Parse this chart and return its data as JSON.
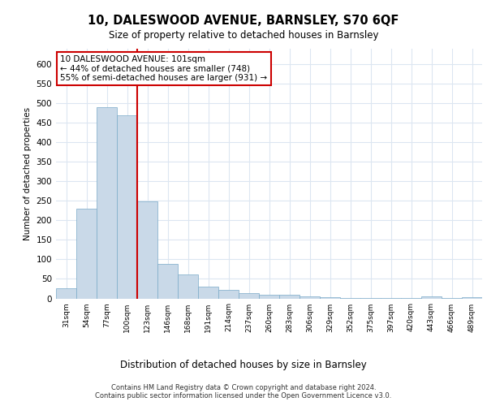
{
  "title1": "10, DALESWOOD AVENUE, BARNSLEY, S70 6QF",
  "title2": "Size of property relative to detached houses in Barnsley",
  "xlabel": "Distribution of detached houses by size in Barnsley",
  "ylabel": "Number of detached properties",
  "footer1": "Contains HM Land Registry data © Crown copyright and database right 2024.",
  "footer2": "Contains public sector information licensed under the Open Government Licence v3.0.",
  "annotation_title": "10 DALESWOOD AVENUE: 101sqm",
  "annotation_line2": "← 44% of detached houses are smaller (748)",
  "annotation_line3": "55% of semi-detached houses are larger (931) →",
  "bar_color": "#c9d9e8",
  "bar_edge_color": "#7aaac8",
  "vline_color": "#cc0000",
  "annotation_box_color": "#cc0000",
  "grid_color": "#dce6f1",
  "categories": [
    "31sqm",
    "54sqm",
    "77sqm",
    "100sqm",
    "123sqm",
    "146sqm",
    "168sqm",
    "191sqm",
    "214sqm",
    "237sqm",
    "260sqm",
    "283sqm",
    "306sqm",
    "329sqm",
    "352sqm",
    "375sqm",
    "397sqm",
    "420sqm",
    "443sqm",
    "466sqm",
    "489sqm"
  ],
  "values": [
    25,
    230,
    490,
    470,
    248,
    88,
    62,
    30,
    22,
    13,
    10,
    9,
    5,
    3,
    2,
    2,
    1,
    1,
    6,
    1,
    4
  ],
  "ylim": [
    0,
    640
  ],
  "yticks": [
    0,
    50,
    100,
    150,
    200,
    250,
    300,
    350,
    400,
    450,
    500,
    550,
    600
  ]
}
